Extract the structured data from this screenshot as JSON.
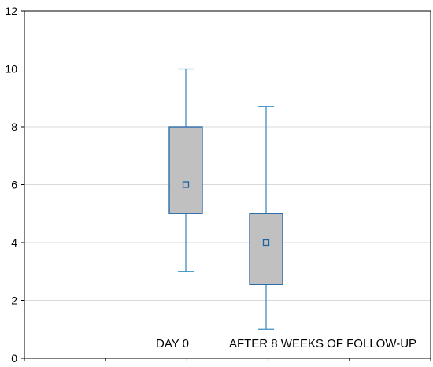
{
  "chart_data": {
    "type": "boxplot",
    "title": "",
    "xlabel": "",
    "ylabel": "",
    "ylim": [
      0,
      12
    ],
    "yticks": [
      "0",
      "2",
      "4",
      "6",
      "8",
      "10",
      "12"
    ],
    "categories": [
      "DAY 0",
      "AFTER 8 WEEKS OF FOLLOW-UP"
    ],
    "boxes": [
      {
        "category": "DAY 0",
        "min": 3,
        "q1": 5,
        "median": 6,
        "q3": 8,
        "max": 10
      },
      {
        "category": "AFTER 8 WEEKS OF FOLLOW-UP",
        "min": 1,
        "q1": 2.55,
        "median": 4,
        "q3": 5,
        "max": 8.7
      }
    ],
    "grid": true,
    "legend": "none",
    "colors": {
      "box_fill": "#c0c0c0",
      "box_stroke": "#1f63a6",
      "whisker": "#3a8fc4",
      "grid": "#d9d9d9",
      "axis": "#000000",
      "text": "#000000"
    }
  }
}
